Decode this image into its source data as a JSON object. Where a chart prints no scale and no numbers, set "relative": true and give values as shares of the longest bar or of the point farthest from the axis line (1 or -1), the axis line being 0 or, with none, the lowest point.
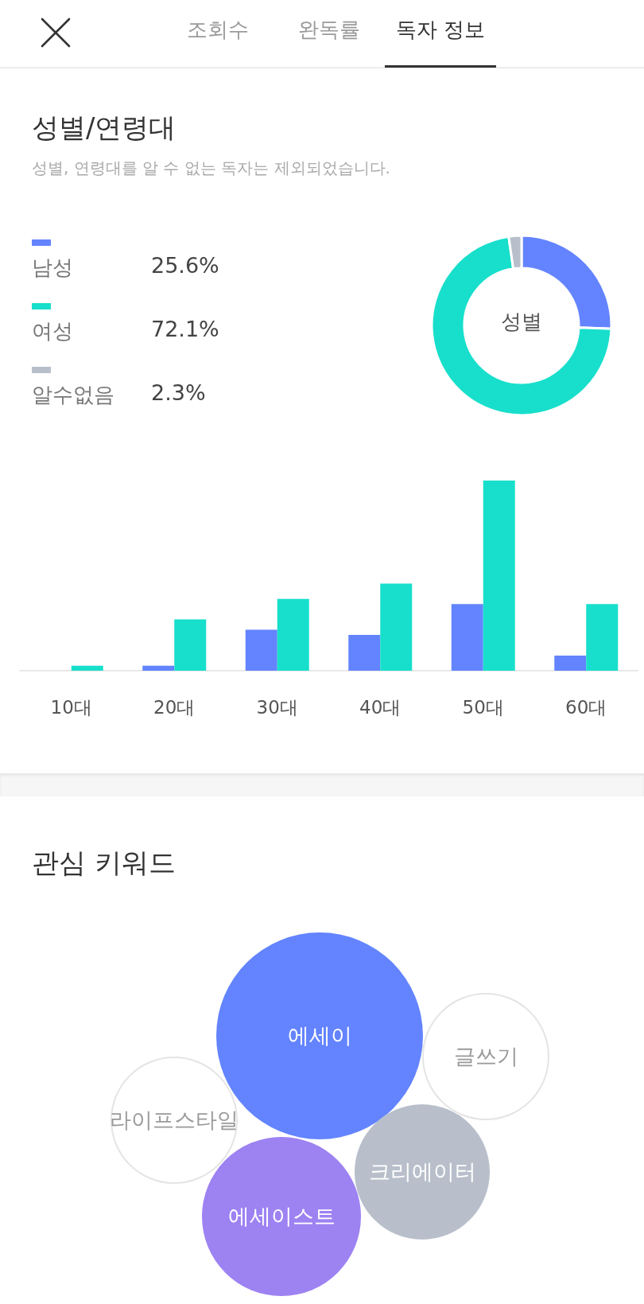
{
  "chart_data": [
    {
      "type": "other",
      "annotations": [
        "조회수",
        "완독률",
        "독자 정보"
      ]
    },
    {
      "type": "donut",
      "title": "성별/연령대",
      "subtitle": "성별, 연령대를 알 수 없는 독자는 제외되었습니다.",
      "categories": [
        "남성",
        "여성",
        "알수없음"
      ],
      "values": [
        25.6,
        72.1,
        2.3
      ],
      "value_labels": [
        "25.6%",
        "72.1%",
        "2.3%"
      ],
      "colors": [
        "#6384fe",
        "#17dfcb",
        "#b8bfcb"
      ],
      "annotations": [
        "성별"
      ],
      "legend": "left"
    },
    {
      "type": "bar",
      "categories": [
        "10대",
        "20대",
        "30대",
        "40대",
        "50대",
        "60대"
      ],
      "relative": true,
      "series": [
        {
          "color": "#6384fe",
          "values": [
            0,
            0.026,
            0.216,
            0.188,
            0.35,
            0.08
          ]
        },
        {
          "color": "#17dfcb",
          "values": [
            0.026,
            0.27,
            0.378,
            0.458,
            1,
            0.35
          ]
        }
      ]
    },
    {
      "type": "other",
      "title": "관심 키워드",
      "categories": [
        "에세이",
        "글쓰기",
        "라이프스타일",
        "크리에이터",
        "에세이스트"
      ],
      "colors": [
        "#6384fe",
        "#e4e4e4",
        "#e4e4e4",
        "#b8bfcb",
        "#9d82f2"
      ]
    }
  ]
}
